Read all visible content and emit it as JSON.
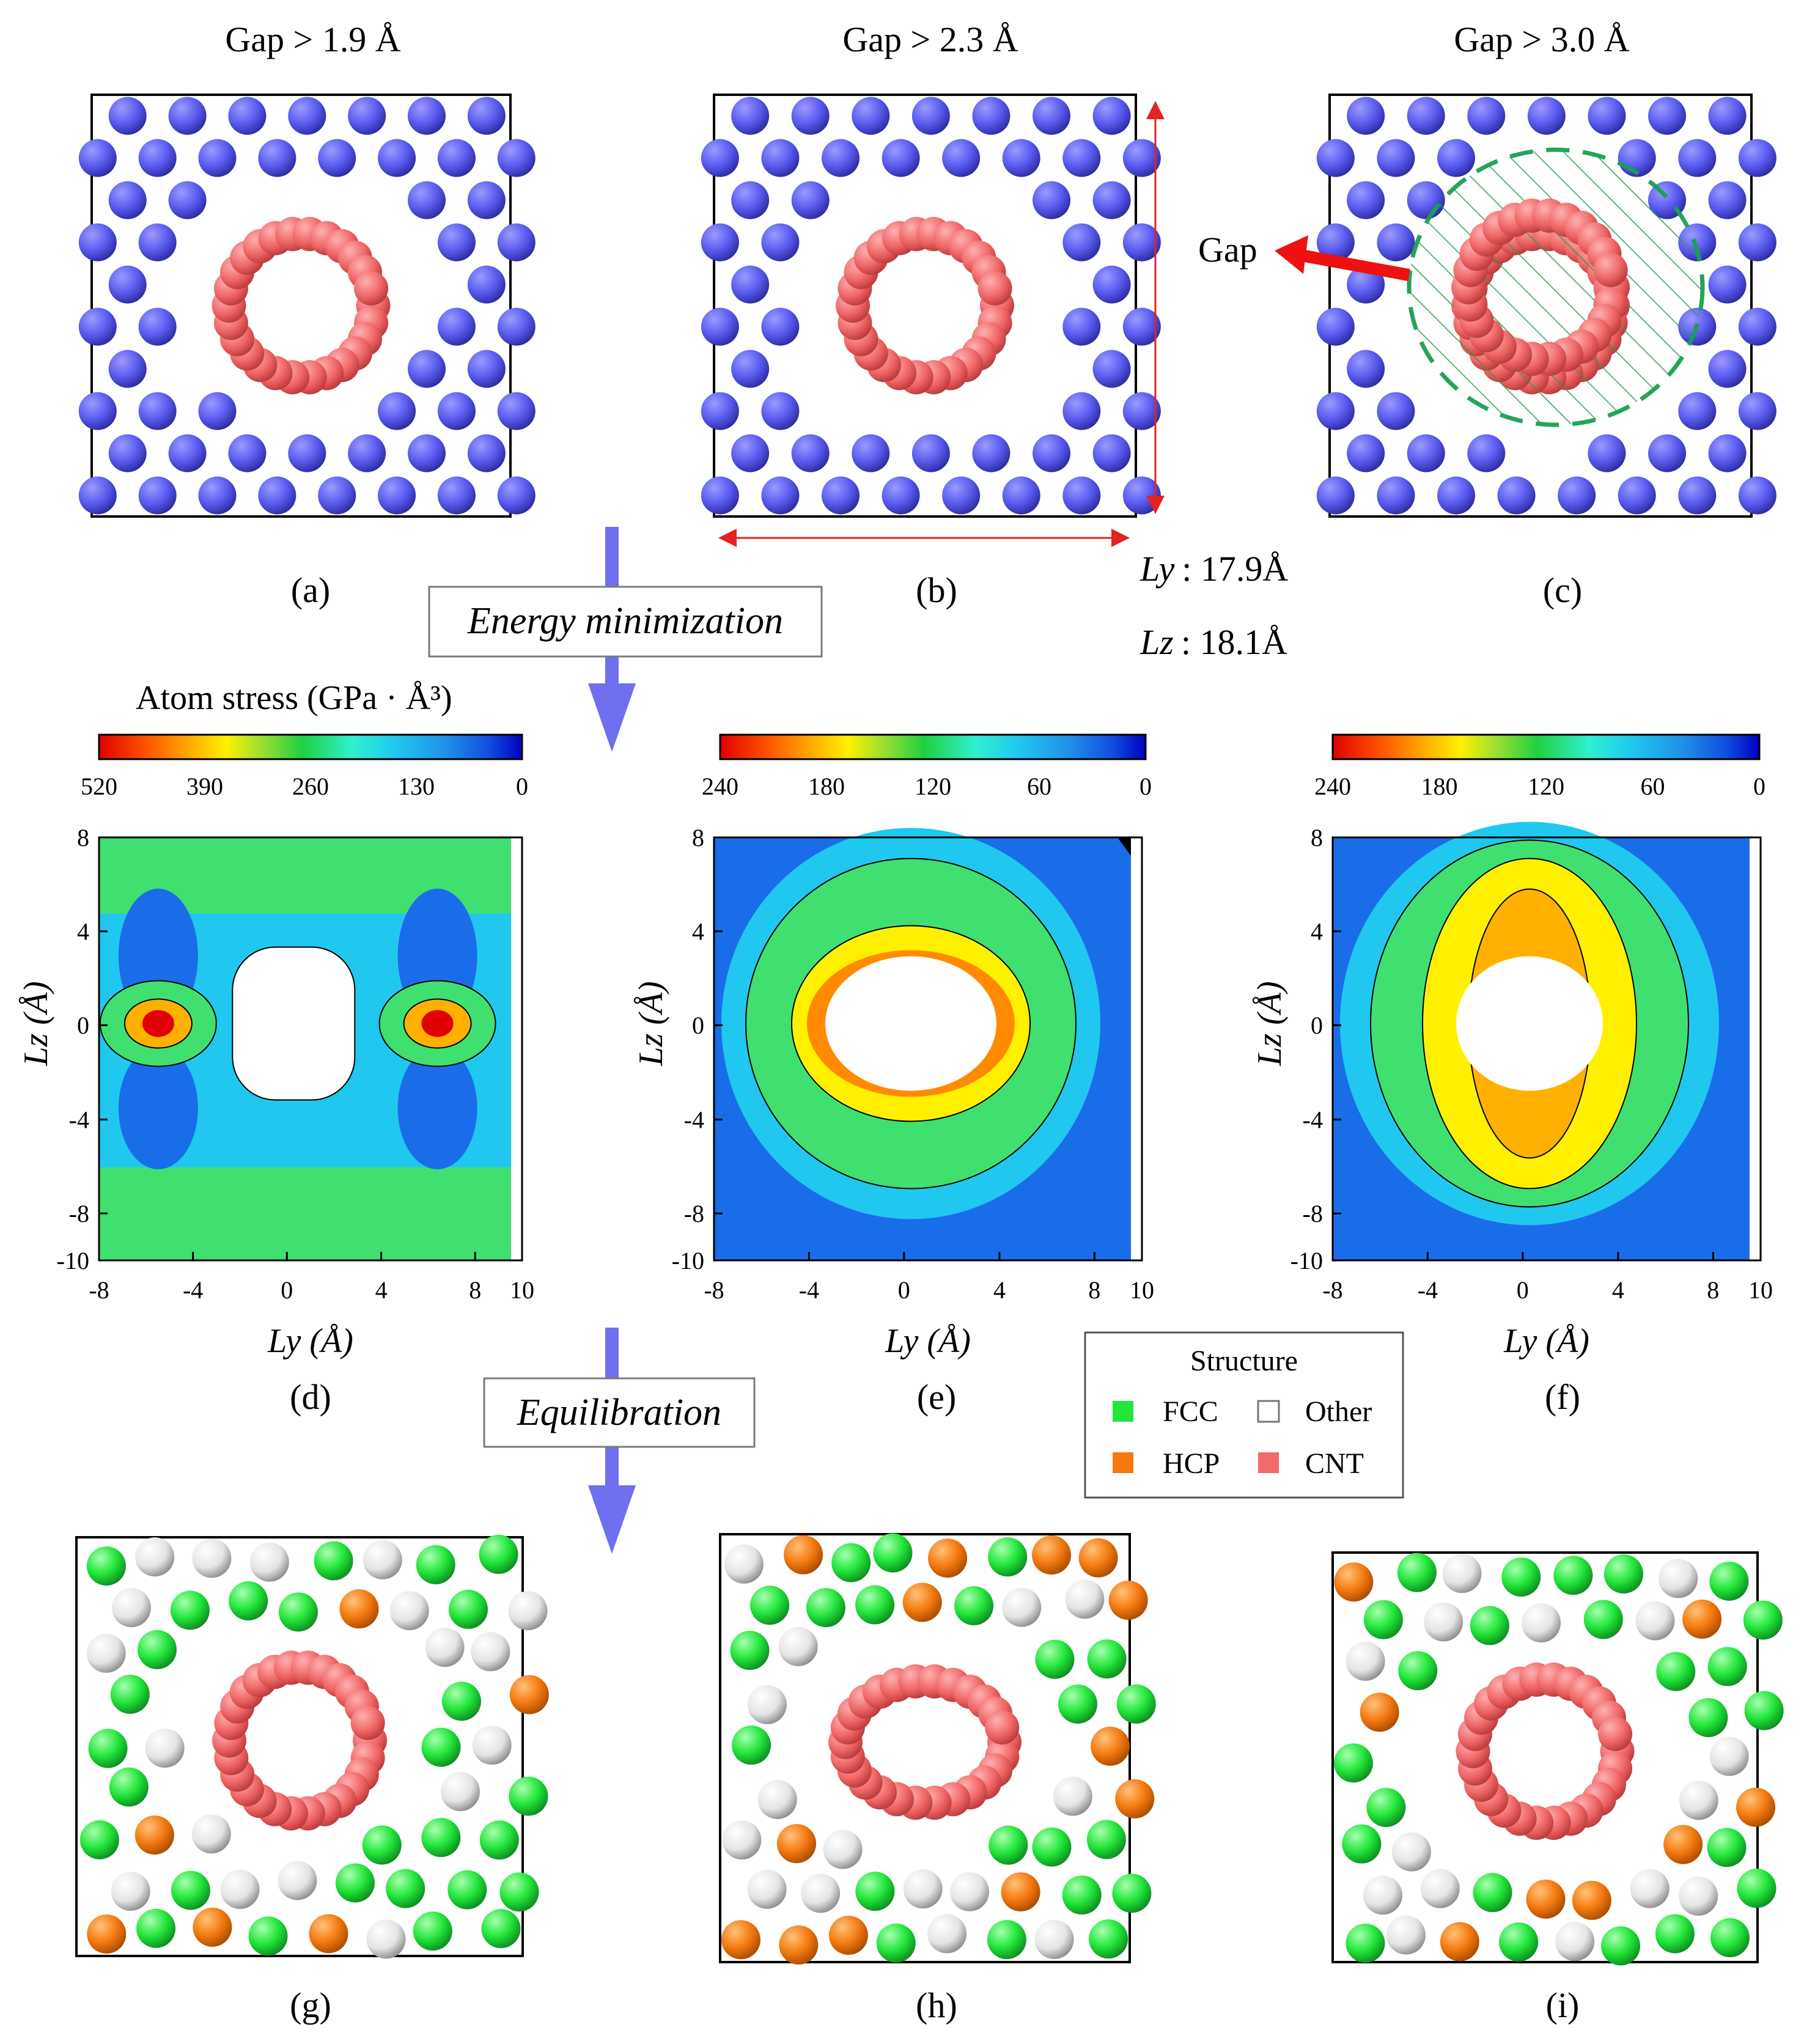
{
  "panels_top": [
    {
      "gap_label": "Gap > 1.9 Å",
      "caption": "(a)"
    },
    {
      "gap_label": "Gap > 2.3 Å",
      "caption": "(b)"
    },
    {
      "gap_label": "Gap > 3.0 Å",
      "caption": "(c)"
    }
  ],
  "gap_annotation": "Gap",
  "dimensions": {
    "ly_label": "Ly",
    "ly_value": ": 17.9Å",
    "lz_label": "Lz",
    "lz_value": ": 18.1Å"
  },
  "steps": {
    "energy": "Energy minimization",
    "equilibration": "Equilibration"
  },
  "colorbar_title": "Atom stress (GPa · Å³)",
  "contour_panels": [
    {
      "caption": "(d)",
      "colorbar_ticks": [
        "520",
        "390",
        "260",
        "130",
        "0"
      ]
    },
    {
      "caption": "(e)",
      "colorbar_ticks": [
        "240",
        "180",
        "120",
        "60",
        "0"
      ]
    },
    {
      "caption": "(f)",
      "colorbar_ticks": [
        "240",
        "180",
        "120",
        "60",
        "0"
      ]
    }
  ],
  "axes": {
    "x_label": "Ly (Å)",
    "y_label": "Lz (Å)",
    "x_ticks": [
      "-8",
      "-4",
      "0",
      "4",
      "8",
      "10"
    ],
    "y_ticks": [
      "8",
      "4",
      "0",
      "-4",
      "-8",
      "-10"
    ]
  },
  "legend": {
    "title": "Structure",
    "items": [
      {
        "label": "FCC",
        "color": "#22e63a"
      },
      {
        "label": "Other",
        "color": "#ffffff"
      },
      {
        "label": "HCP",
        "color": "#f47a10"
      },
      {
        "label": "CNT",
        "color": "#f26a6a"
      }
    ]
  },
  "bottom_captions": [
    "(g)",
    "(h)",
    "(i)"
  ],
  "colors": {
    "atom_blue": "#5b5cf0",
    "cnt_red": "#ef6565",
    "arrow_blue": "#6f6ff0",
    "dim_red": "#e52222",
    "gap_green": "#1aa050"
  }
}
